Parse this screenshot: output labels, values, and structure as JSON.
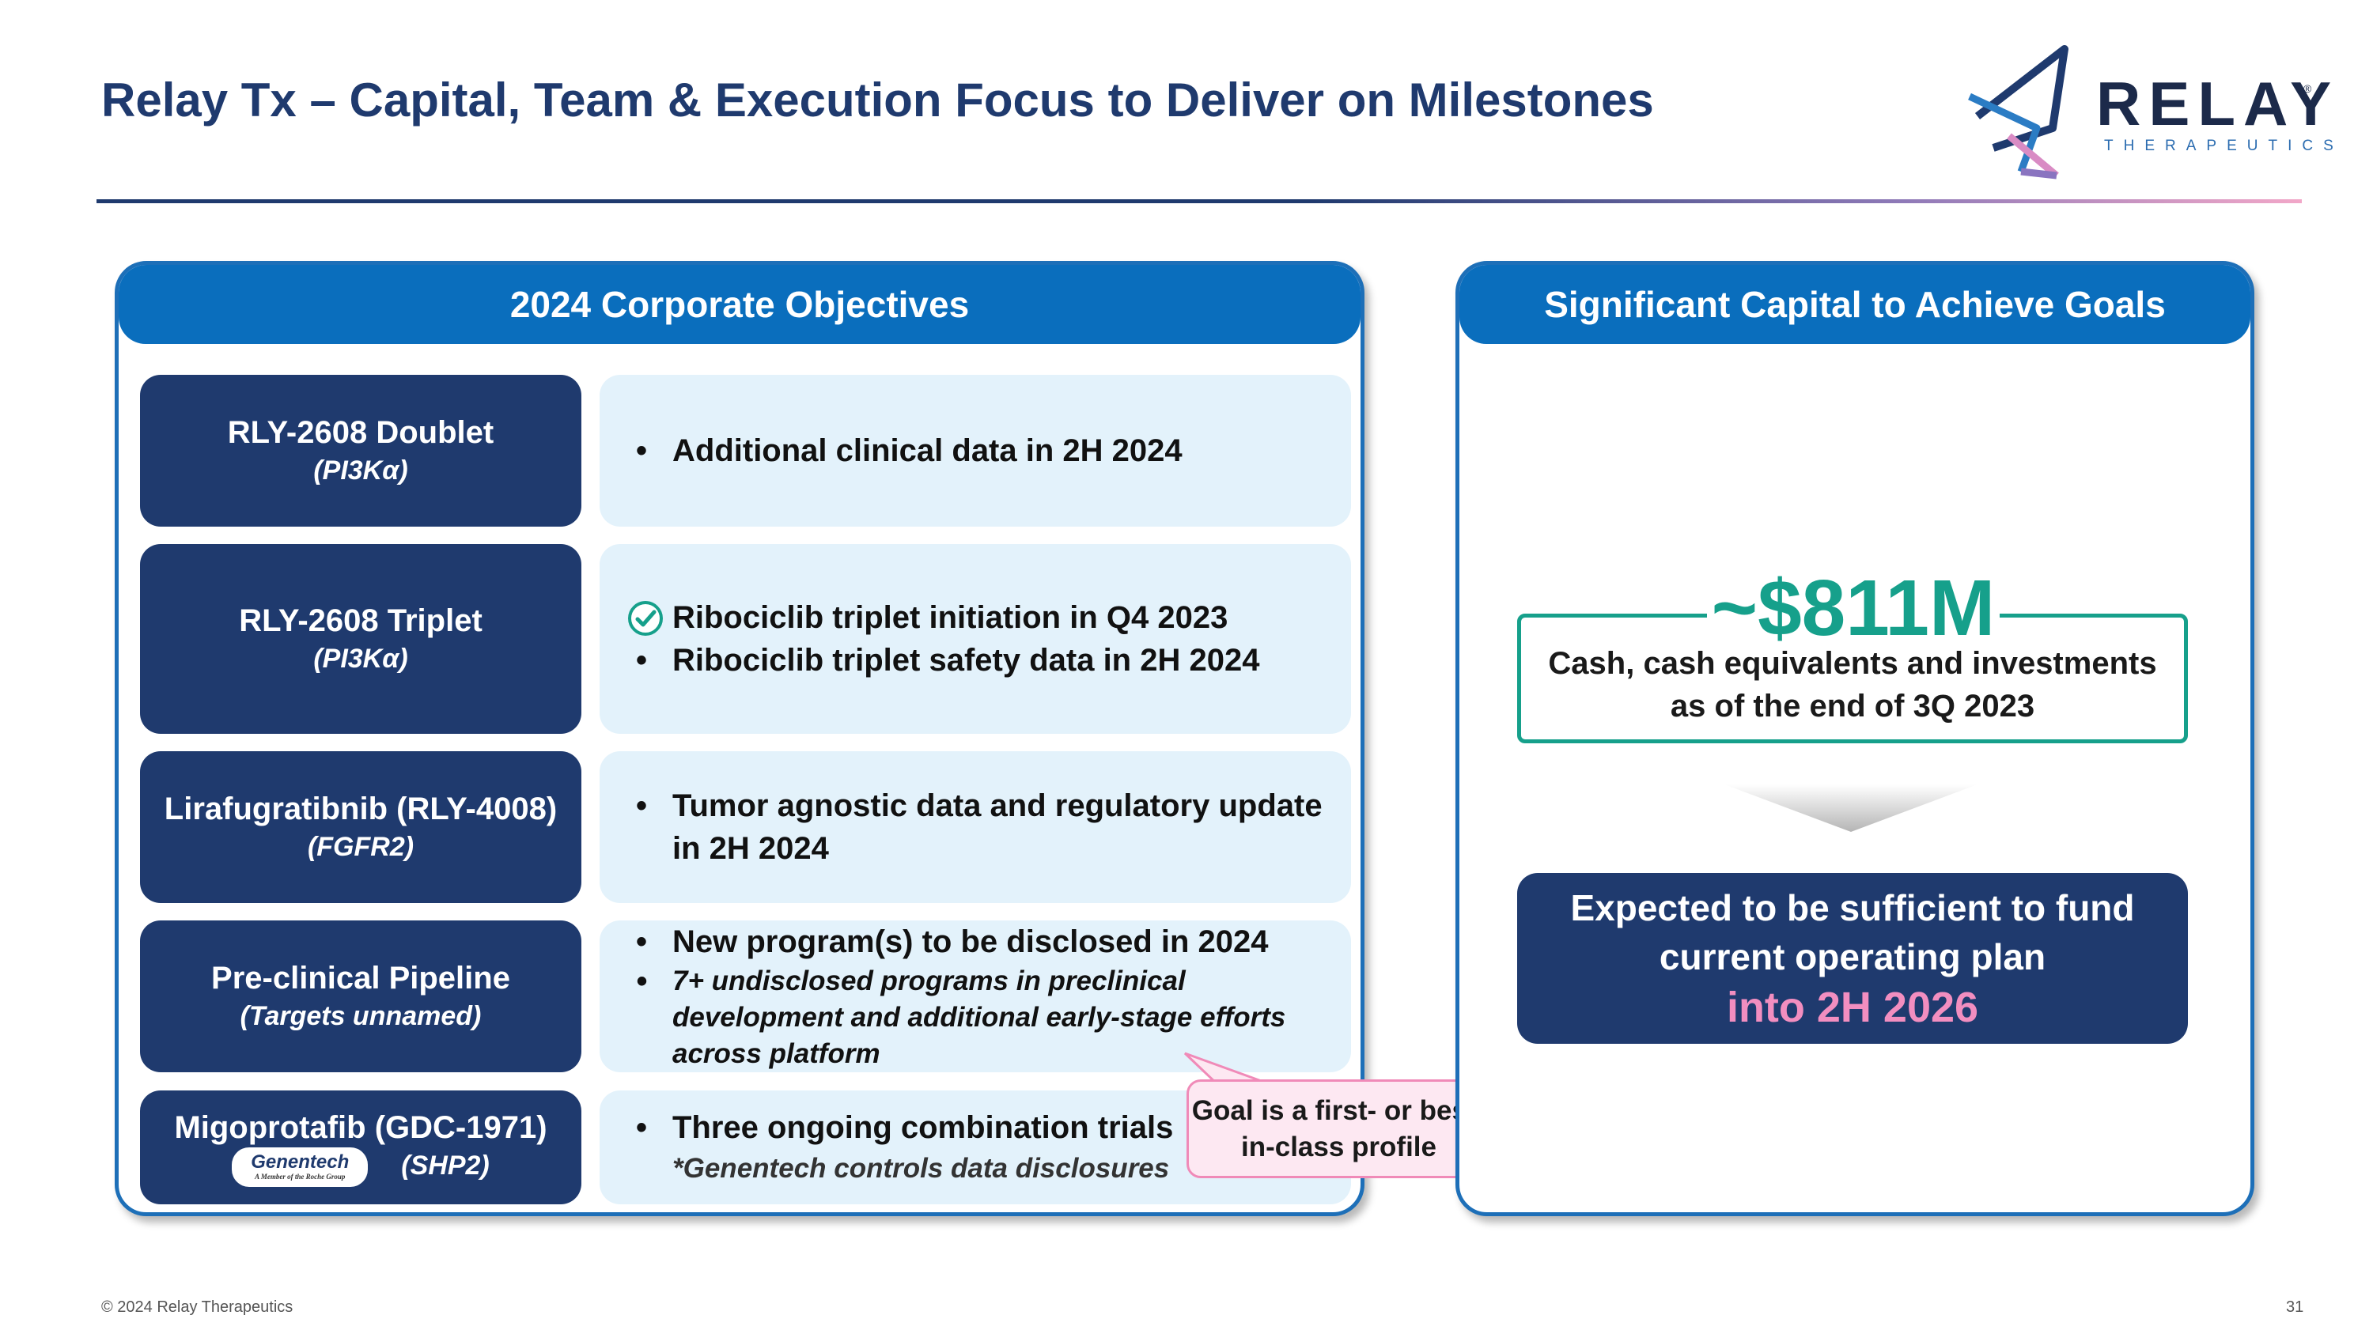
{
  "slide": {
    "title": "Relay Tx – Capital, Team & Execution Focus to Deliver on Milestones",
    "logo": {
      "word": "RELAY",
      "registered": "®",
      "sub": "THERAPEUTICS"
    }
  },
  "objectives": {
    "header": "2024 Corporate Objectives",
    "rows": [
      {
        "name": "RLY-2608 Doublet",
        "target": "(PI3Kα)",
        "bullets": [
          "Additional clinical data in 2H 2024"
        ]
      },
      {
        "name": "RLY-2608 Triplet",
        "target": "(PI3Kα)",
        "bullets": [
          "Ribociclib triplet initiation in Q4 2023",
          "Ribociclib triplet safety data in 2H 2024"
        ]
      },
      {
        "name": "Lirafugratibnib (RLY-4008)",
        "target": "(FGFR2)",
        "bullets": [
          "Tumor agnostic data and regulatory update in 2H 2024"
        ]
      },
      {
        "name": "Pre-clinical Pipeline",
        "target": "(Targets unnamed)",
        "bullets": [
          "New program(s) to be disclosed in 2024",
          "7+ undisclosed programs in preclinical development and additional early-stage efforts across platform"
        ]
      },
      {
        "name": "Migoprotafib (GDC-1971)",
        "target": "(SHP2)",
        "partner": "Genentech",
        "partner_sub": "A Member of the Roche Group",
        "bullets": [
          "Three ongoing combination trials"
        ],
        "note": "*Genentech controls data disclosures"
      }
    ],
    "callout": "Goal is a first- or best-in-class profile"
  },
  "capital": {
    "header": "Significant Capital to Achieve Goals",
    "amount": "~$811M",
    "amount_desc": "Cash, cash equivalents and investments as of the end of 3Q 2023",
    "fund_text": "Expected to be sufficient to fund current operating plan",
    "fund_emph": "into 2H 2026"
  },
  "footer": {
    "copyright": "© 2024 Relay Therapeutics",
    "page": "31"
  },
  "colors": {
    "navy": "#1f3a6e",
    "header_blue": "#0a6ebd",
    "teal": "#16a08b",
    "pink": "#f28ec0",
    "light_blue": "#e3f2fb"
  },
  "icons": [
    "checkmark-circle-icon",
    "down-arrow-icon",
    "relay-logo-icon"
  ]
}
